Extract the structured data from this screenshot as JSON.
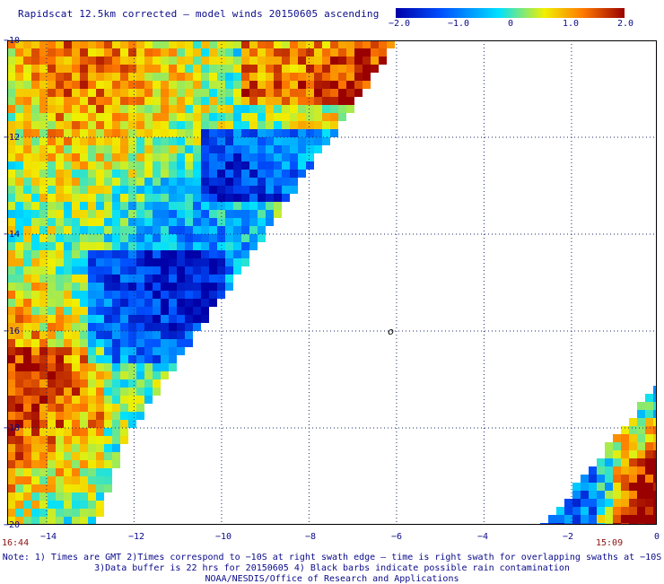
{
  "title": "Rapidscat 12.5km corrected – model winds 20150605 ascending",
  "colorbar": {
    "ticks": [
      "−2.0",
      "−1.0",
      "0",
      "1.0",
      "2.0"
    ],
    "colors": [
      "#0000a8",
      "#0050ff",
      "#00e0ff",
      "#f0f000",
      "#ff7800",
      "#9a0000"
    ]
  },
  "axes": {
    "y_ticks": [
      "−10",
      "−12",
      "−14",
      "−16",
      "−18",
      "−20"
    ],
    "x_ticks": [
      "−14",
      "−12",
      "−10",
      "−8",
      "−6",
      "−4",
      "−2",
      "0"
    ],
    "x_range": [
      -14.9,
      -0.05
    ],
    "y_range": [
      -10,
      -20
    ],
    "grid": "dotted"
  },
  "swath_times": {
    "left": "16:44",
    "right": "15:09"
  },
  "marker": {
    "symbol": "o",
    "lon": -6.2,
    "lat": -16.0
  },
  "notes": {
    "line1": "Note: 1) Times are GMT 2)Times correspond to −10S at right swath edge – time is right swath for overlapping swaths at −10S",
    "line2": "3)Data buffer is 22 hrs for 20150605 4) Black barbs indicate possible rain contamination",
    "line3": "NOAA/NESDIS/Office of Research and Applications"
  }
}
